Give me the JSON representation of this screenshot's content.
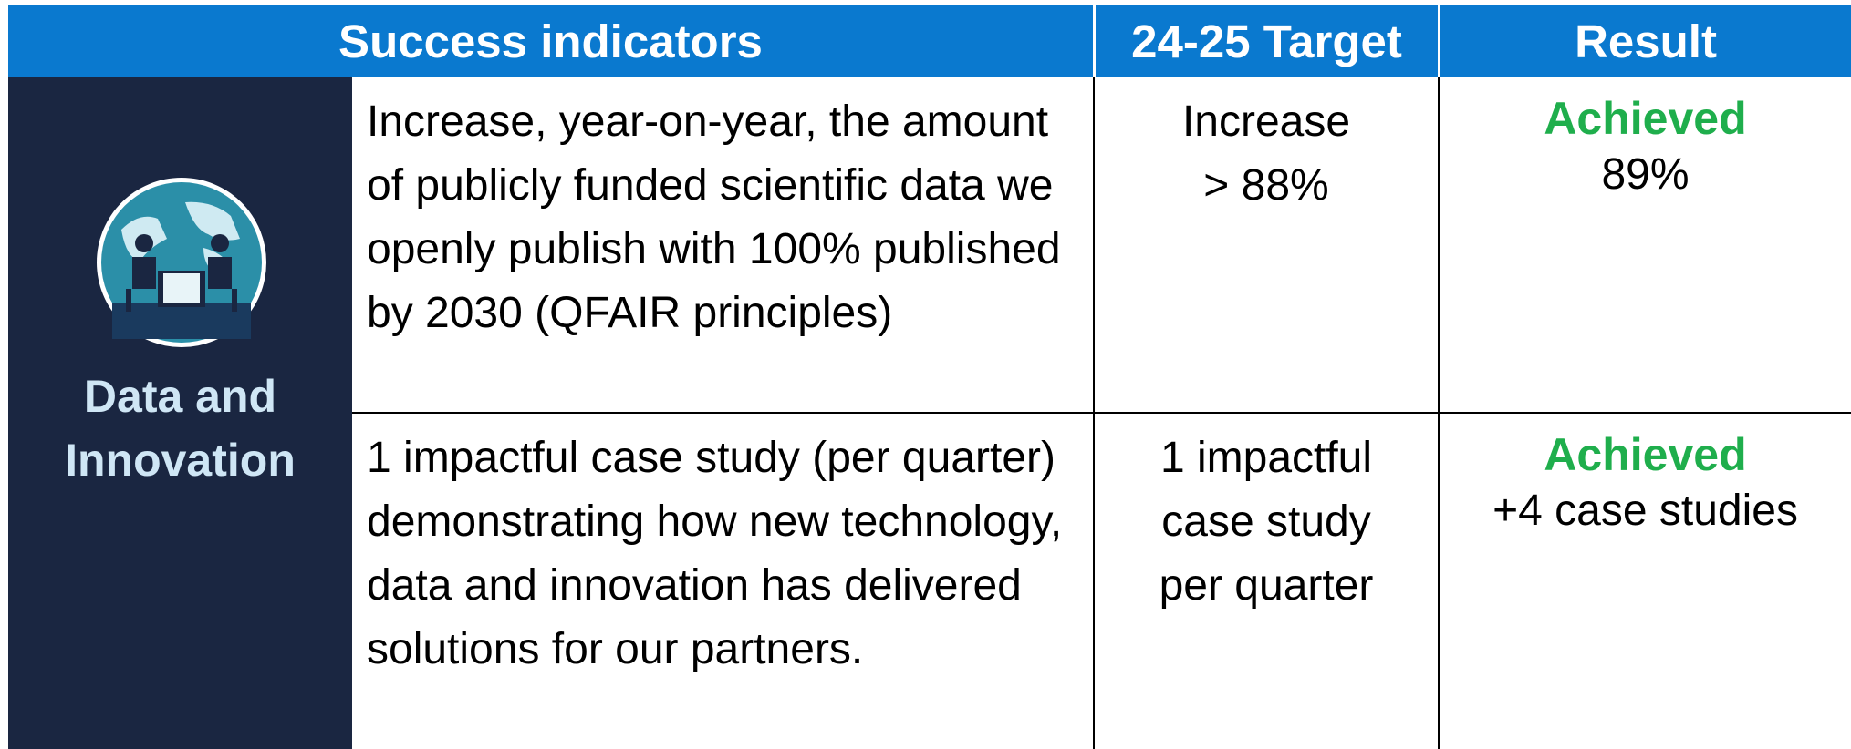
{
  "header": {
    "indicators": "Success indicators",
    "target": "24-25 Target",
    "result": "Result"
  },
  "category": "Data and Innovation",
  "rows": [
    {
      "indicator": "Increase, year-on-year, the amount of publicly funded scientific data we openly publish with 100% published by 2030 (QFAIR principles)",
      "target": [
        "Increase",
        "> 88%"
      ],
      "status": "Achieved",
      "result": "89%"
    },
    {
      "indicator": "1 impactful case study (per quarter) demonstrating how new technology, data and innovation has delivered solutions for our partners.",
      "target": [
        "1 impactful case study per quarter"
      ],
      "status": "Achieved",
      "result": "+4 case studies"
    }
  ]
}
